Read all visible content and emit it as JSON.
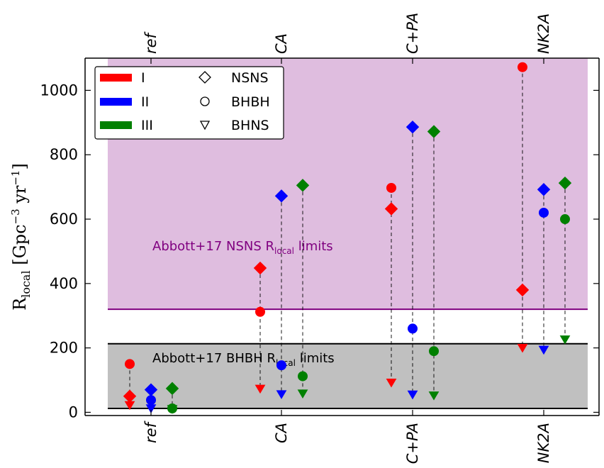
{
  "chart_data": {
    "type": "scatter",
    "ylabel_main": "R",
    "ylabel_sub": "local",
    "ylabel_units": "[Gpc",
    "ylabel_exp1": "−3",
    "ylabel_mid": " yr",
    "ylabel_exp2": "−1",
    "ylabel_close": "]",
    "categories": [
      "ref",
      "CA",
      "C+PA",
      "NK2A"
    ],
    "ylim": [
      -10,
      1100
    ],
    "yticks": [
      0,
      200,
      400,
      600,
      800,
      1000
    ],
    "series_colors": {
      "I": "#ff0000",
      "II": "#0000ff",
      "III": "#008000"
    },
    "series": [
      {
        "name": "I",
        "color": "#ff0000",
        "offset": -1,
        "NSNS": [
          50,
          448,
          632,
          380
        ],
        "BHBH": [
          150,
          312,
          697,
          1072
        ],
        "BHNS": [
          22,
          73,
          92,
          200
        ]
      },
      {
        "name": "II",
        "color": "#0000ff",
        "offset": 0,
        "NSNS": [
          70,
          672,
          886,
          692
        ],
        "BHBH": [
          38,
          146,
          260,
          620
        ],
        "BHNS": [
          12,
          56,
          55,
          194
        ]
      },
      {
        "name": "III",
        "color": "#008000",
        "offset": 1,
        "NSNS": [
          74,
          705,
          872,
          712
        ],
        "BHBH": [
          12,
          112,
          190,
          600
        ],
        "BHNS": [
          10,
          58,
          52,
          226
        ]
      }
    ],
    "bands": [
      {
        "label_pre": "Abbott+17 NSNS R",
        "label_sub": "local",
        "label_post": " limits",
        "ymin": 320,
        "ymax": 1100,
        "fill": "#dfbddf",
        "line": "#800080",
        "text_color": "#800080"
      },
      {
        "label_pre": "Abbott+17 BHBH R",
        "label_sub": "local",
        "label_post": " limits",
        "ymin": 12,
        "ymax": 213,
        "fill": "#c0c0c0",
        "line": "#000000",
        "text_color": "#000000"
      }
    ],
    "legend": {
      "position": "upper-left",
      "models": [
        "I",
        "II",
        "III"
      ],
      "types": [
        {
          "label": "NSNS",
          "marker": "diamond-icon"
        },
        {
          "label": "BHBH",
          "marker": "circle-icon"
        },
        {
          "label": "BHNS",
          "marker": "triangle-down-icon"
        }
      ]
    }
  }
}
